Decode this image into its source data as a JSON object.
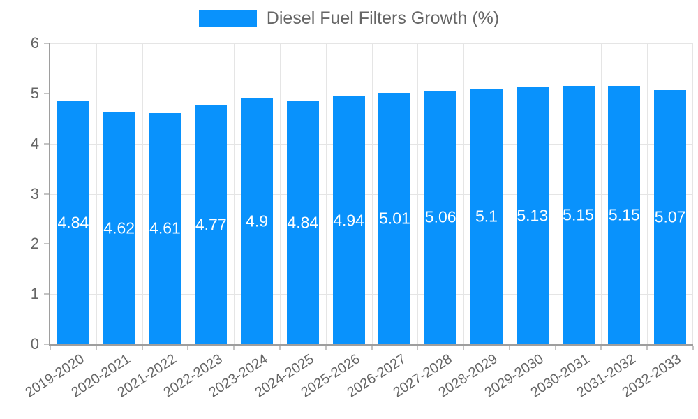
{
  "chart_data": {
    "type": "bar",
    "title": "",
    "legend": "Diesel Fuel Filters Growth (%)",
    "legend_position": "top",
    "categories": [
      "2019-2020",
      "2020-2021",
      "2021-2022",
      "2022-2023",
      "2023-2024",
      "2024-2025",
      "2025-2026",
      "2026-2027",
      "2027-2028",
      "2028-2029",
      "2029-2030",
      "2030-2031",
      "2031-2032",
      "2032-2033"
    ],
    "values": [
      4.84,
      4.62,
      4.61,
      4.77,
      4.9,
      4.84,
      4.94,
      5.01,
      5.06,
      5.1,
      5.13,
      5.15,
      5.15,
      5.07
    ],
    "value_labels": [
      "4.84",
      "4.62",
      "4.61",
      "4.77",
      "4.9",
      "4.84",
      "4.94",
      "5.01",
      "5.06",
      "5.1",
      "5.13",
      "5.15",
      "5.15",
      "5.07"
    ],
    "xlabel": "",
    "ylabel": "",
    "ylim": [
      0,
      6
    ],
    "yticks": [
      0,
      1,
      2,
      3,
      4,
      5,
      6
    ],
    "grid": true,
    "colors": {
      "bar": "#0992fc",
      "value_label": "#ffffff",
      "tick_text": "#666666",
      "legend_text": "#666666",
      "gridline": "#e5e5e5",
      "axis_line": "#9e9e9e",
      "tick_mark": "#c4c4c4",
      "background": "#ffffff"
    }
  }
}
